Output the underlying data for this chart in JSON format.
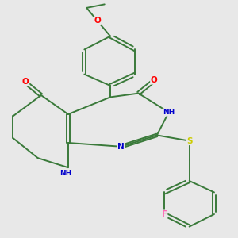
{
  "bg_color": "#e8e8e8",
  "bond_color": "#3a7a3a",
  "atom_colors": {
    "O": "#ff0000",
    "N": "#0000cc",
    "S": "#cccc00",
    "F": "#ff69b4",
    "C": "#3a7a3a"
  },
  "lw": 1.4
}
